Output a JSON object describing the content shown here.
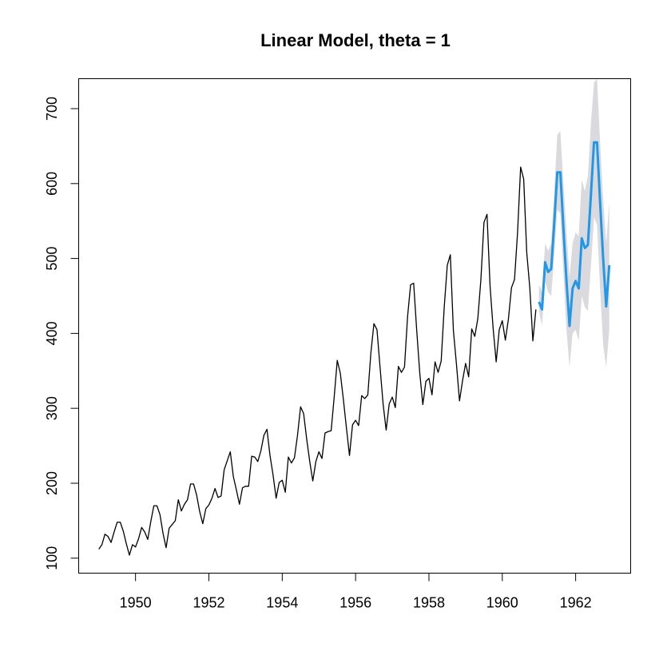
{
  "chart_data": {
    "type": "line",
    "title": "Linear Model, theta = 1",
    "xlabel": "",
    "ylabel": "",
    "xlim": [
      1948.45,
      1963.5
    ],
    "ylim": [
      80,
      740
    ],
    "x_ticks": [
      1950,
      1952,
      1954,
      1956,
      1958,
      1960,
      1962
    ],
    "x_tick_labels": [
      "1950",
      "1952",
      "1954",
      "1956",
      "1958",
      "1960",
      "1962"
    ],
    "y_ticks": [
      100,
      200,
      300,
      400,
      500,
      600,
      700
    ],
    "y_tick_labels": [
      "100",
      "200",
      "300",
      "400",
      "500",
      "600",
      "700"
    ],
    "grid": false,
    "colors": {
      "observed": "#000000",
      "forecast": "#2297E6",
      "interval": "#D9D9DE"
    },
    "series": [
      {
        "role": "observed",
        "start": 1949.0,
        "frequency": 12,
        "values": [
          112,
          118,
          132,
          129,
          121,
          135,
          148,
          148,
          136,
          119,
          104,
          118,
          115,
          126,
          141,
          135,
          125,
          149,
          170,
          170,
          158,
          133,
          114,
          140,
          145,
          150,
          178,
          163,
          172,
          178,
          199,
          199,
          184,
          162,
          146,
          166,
          171,
          180,
          193,
          181,
          183,
          218,
          230,
          242,
          209,
          191,
          172,
          194,
          196,
          196,
          236,
          235,
          229,
          243,
          264,
          272,
          237,
          211,
          180,
          201,
          204,
          188,
          235,
          227,
          234,
          264,
          302,
          293,
          259,
          229,
          203,
          229,
          242,
          233,
          267,
          269,
          270,
          315,
          364,
          347,
          312,
          274,
          237,
          278,
          284,
          277,
          317,
          313,
          318,
          374,
          413,
          405,
          355,
          306,
          271,
          306,
          315,
          301,
          356,
          348,
          355,
          422,
          465,
          467,
          404,
          347,
          305,
          336,
          340,
          318,
          362,
          348,
          363,
          435,
          491,
          505,
          404,
          359,
          310,
          337,
          360,
          342,
          406,
          396,
          420,
          472,
          548,
          559,
          463,
          407,
          362,
          405,
          417,
          391,
          419,
          461,
          472,
          535,
          622,
          606,
          508,
          461,
          390,
          432
        ]
      },
      {
        "role": "forecast",
        "start": 1961.0,
        "frequency": 12,
        "values": [
          442,
          432,
          495,
          482,
          486,
          548,
          615,
          615,
          540,
          470,
          410,
          460,
          470,
          460,
          527,
          514,
          518,
          585,
          655,
          655,
          575,
          500,
          436,
          491
        ]
      }
    ],
    "interval": {
      "start": 1961.0,
      "frequency": 12,
      "lower": [
        430,
        410,
        470,
        455,
        450,
        505,
        565,
        560,
        480,
        405,
        355,
        400,
        405,
        390,
        450,
        435,
        430,
        490,
        555,
        545,
        460,
        385,
        355,
        405
      ],
      "upper": [
        465,
        455,
        520,
        510,
        520,
        590,
        665,
        670,
        600,
        535,
        475,
        520,
        535,
        530,
        605,
        590,
        610,
        680,
        735,
        740,
        655,
        580,
        520,
        575
      ]
    }
  }
}
